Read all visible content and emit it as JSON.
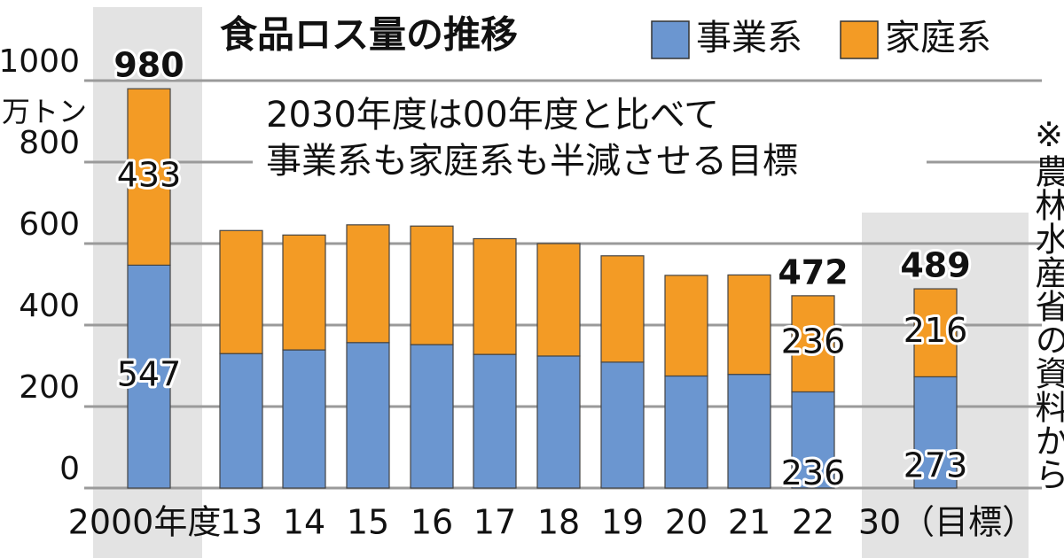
{
  "chart_data": {
    "type": "stacked-bar",
    "title": "食品ロス量の推移",
    "y_label": "万トン",
    "annotation": [
      "2030年度は00年度と比べて",
      "事業系も家庭系も半減させる目標"
    ],
    "source": "※農林水産省の資料から",
    "categories": [
      "2000年度",
      "13",
      "14",
      "15",
      "16",
      "17",
      "18",
      "19",
      "20",
      "21",
      "22",
      "30（目標）"
    ],
    "series": [
      {
        "name": "事業系",
        "color": "#6b96d0",
        "values": [
          547,
          330,
          339,
          357,
          352,
          328,
          324,
          309,
          275,
          279,
          236,
          273
        ],
        "value_labels": [
          "547",
          null,
          null,
          null,
          null,
          null,
          null,
          null,
          null,
          null,
          "236",
          "273"
        ]
      },
      {
        "name": "家庭系",
        "color": "#f39b25",
        "values": [
          433,
          302,
          282,
          289,
          291,
          284,
          276,
          261,
          247,
          244,
          236,
          216
        ],
        "value_labels": [
          "433",
          null,
          null,
          null,
          null,
          null,
          null,
          null,
          null,
          null,
          "236",
          "216"
        ]
      }
    ],
    "totals": [
      980,
      null,
      null,
      null,
      null,
      null,
      null,
      null,
      null,
      null,
      472,
      489
    ],
    "ylim": [
      0,
      1000
    ],
    "yticks": [
      0,
      200,
      400,
      600,
      800,
      1000
    ],
    "grid": true,
    "highlight_color": "#e3e3e3"
  }
}
